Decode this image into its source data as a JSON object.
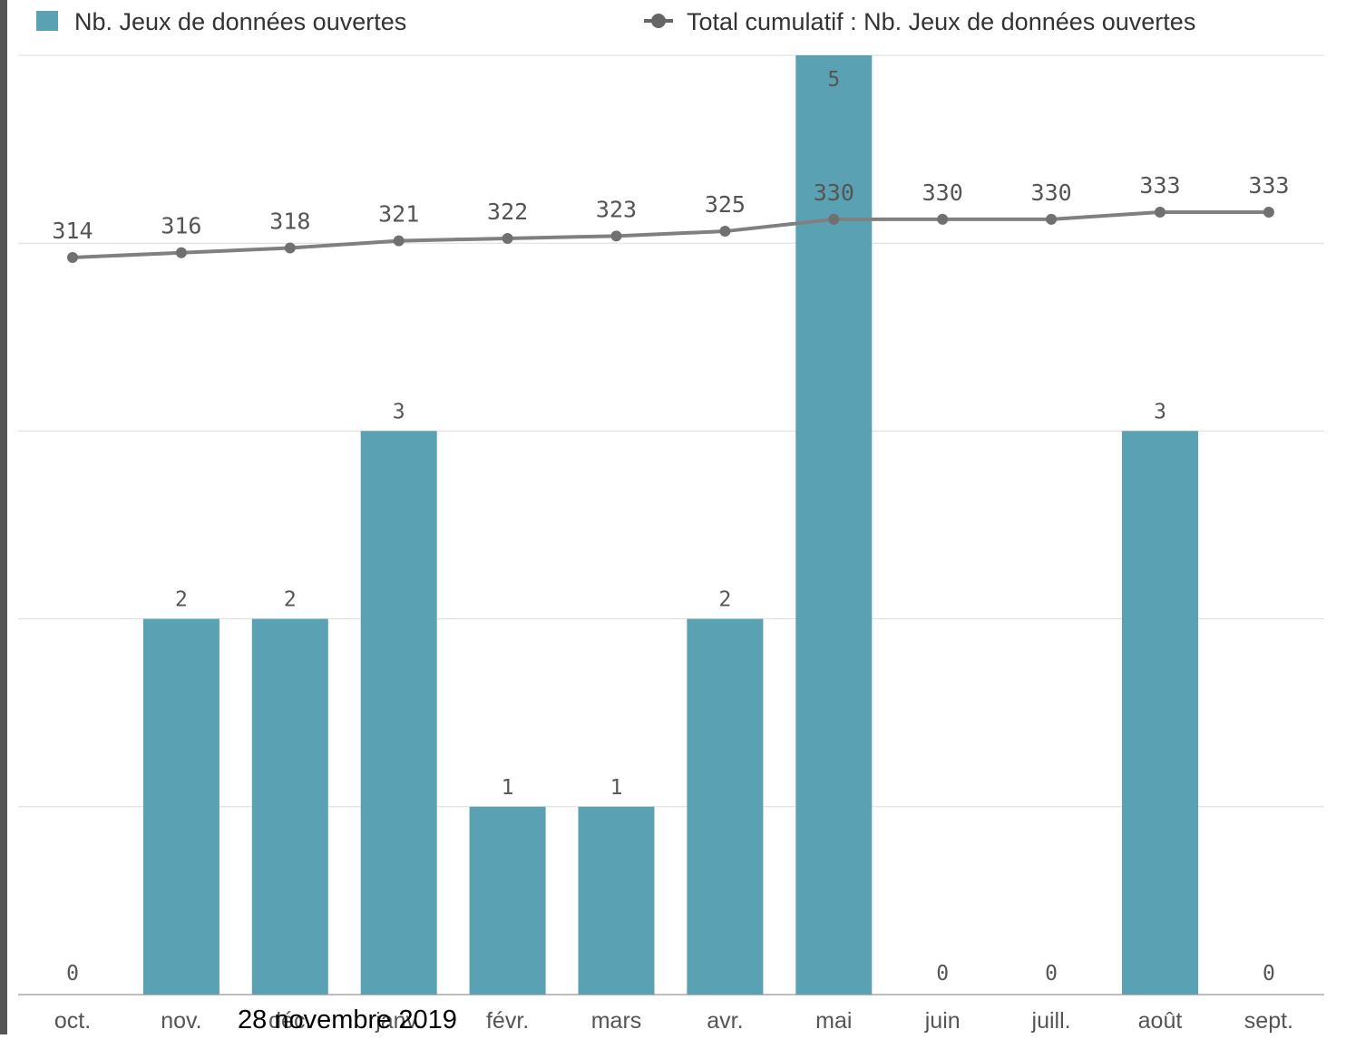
{
  "chart_data": {
    "type": "bar",
    "categories": [
      "oct.",
      "nov.",
      "déc.",
      "janv.",
      "févr.",
      "mars",
      "avr.",
      "mai",
      "juin",
      "juill.",
      "août",
      "sept."
    ],
    "series": [
      {
        "name": "Nb. Jeux de données ouvertes",
        "type": "bar",
        "values": [
          0,
          2,
          2,
          3,
          1,
          1,
          2,
          5,
          0,
          0,
          3,
          0
        ],
        "value_labels": [
          "0",
          "2",
          "2",
          "3",
          "1",
          "1",
          "2",
          "5",
          "0",
          "0",
          "3",
          "0"
        ],
        "color": "#5BA1B4"
      },
      {
        "name": "Total cumulatif : Nb. Jeux de données ouvertes",
        "type": "line",
        "values": [
          314,
          316,
          318,
          321,
          322,
          323,
          325,
          330,
          330,
          330,
          333,
          333
        ],
        "value_labels": [
          "314",
          "316",
          "318",
          "321",
          "322",
          "323",
          "325",
          "330",
          "330",
          "330",
          "333",
          "333"
        ],
        "color": "#808080"
      }
    ],
    "ylim": [
      0,
      5
    ],
    "legend": "top",
    "grid": true
  },
  "caption": {
    "text": "28 novembre 2019"
  }
}
